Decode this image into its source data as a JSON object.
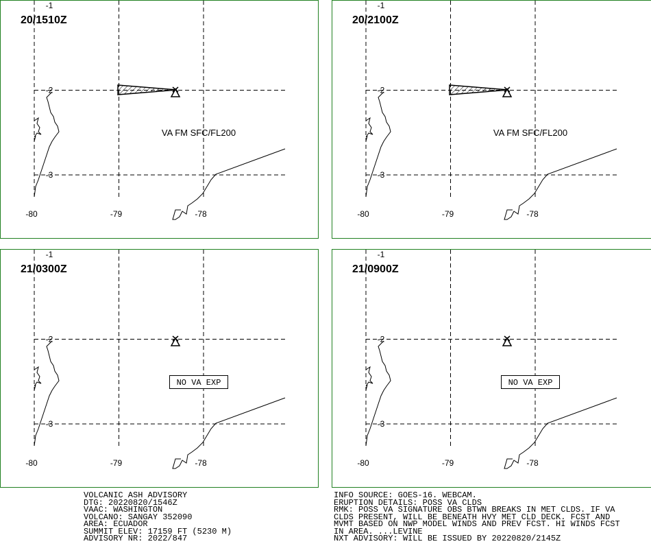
{
  "panels": [
    {
      "time": "20/1510Z",
      "annotation": "VA FM SFC/FL200",
      "ash_area": true
    },
    {
      "time": "20/2100Z",
      "annotation": "VA FM SFC/FL200",
      "ash_area": true
    },
    {
      "time": "21/0300Z",
      "annotation": "NO VA EXP",
      "ash_area": false
    },
    {
      "time": "21/0900Z",
      "annotation": "NO VA EXP",
      "ash_area": false
    }
  ],
  "grid": {
    "lats": [
      -1,
      -2,
      -3
    ],
    "lons": [
      -80,
      -79,
      -78
    ]
  },
  "advisory_left": [
    "VOLCANIC ASH ADVISORY",
    "DTG: 20220820/1546Z",
    "VAAC: WASHINGTON",
    "VOLCANO: SANGAY 352090",
    "AREA: ECUADOR",
    "SUMMIT ELEV: 17159 FT (5230 M)",
    "ADVISORY NR: 2022/847"
  ],
  "advisory_right": [
    "INFO SOURCE: GOES-16. WEBCAM.",
    "ERUPTION DETAILS: POSS VA CLDS",
    "RMK: POSS VA SIGNATURE OBS BTWN BREAKS IN MET CLDS. IF VA",
    "CLDS PRESENT, WILL BE BENEATH HVY MET CLD DECK. FCST AND",
    "MVMT BASED ON NWP MODEL WINDS AND PREV FCST. HI WINDS FCST",
    "IN AREA. ...LEVINE",
    "NXT ADVISORY: WILL BE ISSUED BY 20220820/2145Z"
  ]
}
